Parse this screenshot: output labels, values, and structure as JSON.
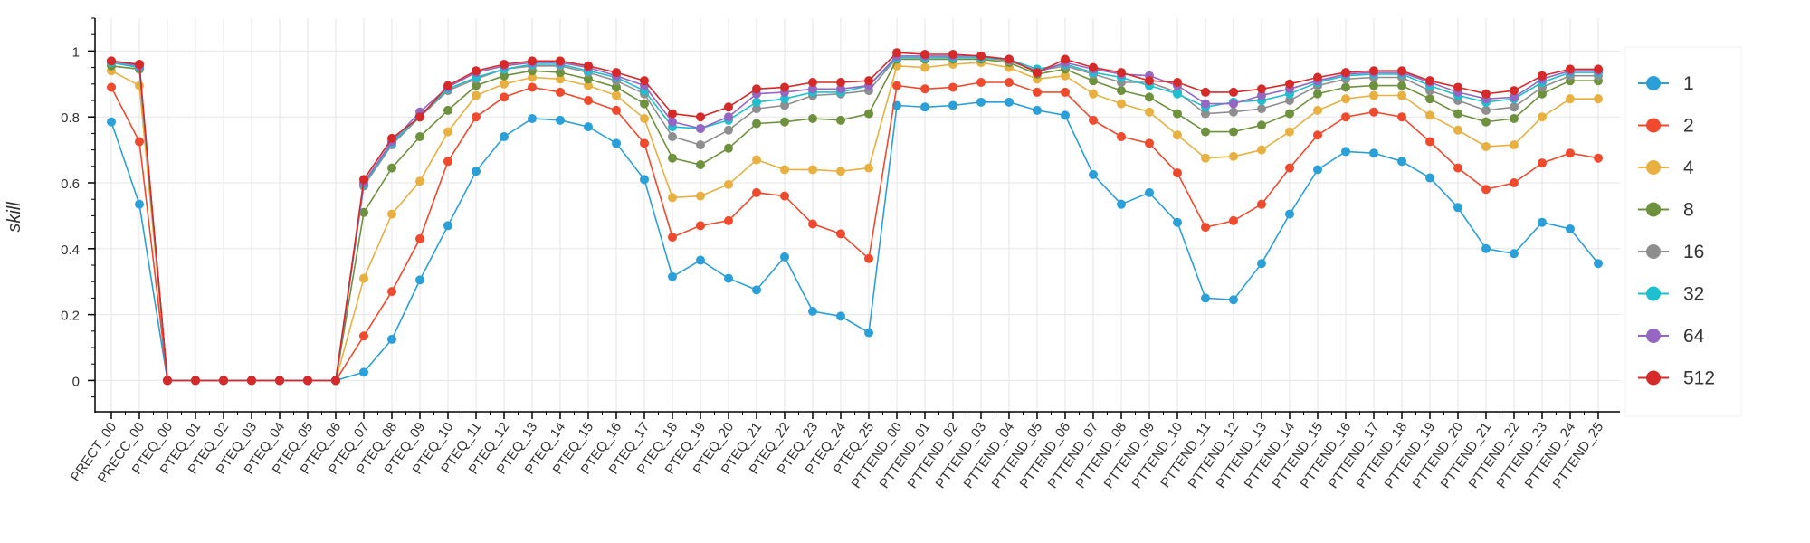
{
  "chart_data": {
    "type": "line",
    "title": "",
    "xlabel": "",
    "ylabel": "skill",
    "ylim": [
      -0.095,
      1.1
    ],
    "yticks": [
      "0",
      "0.2",
      "0.4",
      "0.6",
      "0.8",
      "1"
    ],
    "grid": true,
    "legend_position": "right",
    "categories": [
      "PRECT_00",
      "PRECC_00",
      "PTEQ_00",
      "PTEQ_01",
      "PTEQ_02",
      "PTEQ_03",
      "PTEQ_04",
      "PTEQ_05",
      "PTEQ_06",
      "PTEQ_07",
      "PTEQ_08",
      "PTEQ_09",
      "PTEQ_10",
      "PTEQ_11",
      "PTEQ_12",
      "PTEQ_13",
      "PTEQ_14",
      "PTEQ_15",
      "PTEQ_16",
      "PTEQ_17",
      "PTEQ_18",
      "PTEQ_19",
      "PTEQ_20",
      "PTEQ_21",
      "PTEQ_22",
      "PTEQ_23",
      "PTEQ_24",
      "PTEQ_25",
      "PTTEND_00",
      "PTTEND_01",
      "PTTEND_02",
      "PTTEND_03",
      "PTTEND_04",
      "PTTEND_05",
      "PTTEND_06",
      "PTTEND_07",
      "PTTEND_08",
      "PTTEND_09",
      "PTTEND_10",
      "PTTEND_11",
      "PTTEND_12",
      "PTTEND_13",
      "PTTEND_14",
      "PTTEND_15",
      "PTTEND_16",
      "PTTEND_17",
      "PTTEND_18",
      "PTTEND_19",
      "PTTEND_20",
      "PTTEND_21",
      "PTTEND_22",
      "PTTEND_23",
      "PTTEND_24",
      "PTTEND_25"
    ],
    "series": [
      {
        "name": "1",
        "color": "#2ba0d8",
        "values": [
          0.785,
          0.535,
          0,
          0,
          0,
          0,
          0,
          0,
          0,
          0.025,
          0.125,
          0.305,
          0.47,
          0.635,
          0.74,
          0.795,
          0.79,
          0.77,
          0.72,
          0.61,
          0.315,
          0.365,
          0.31,
          0.275,
          0.375,
          0.21,
          0.195,
          0.145,
          0.835,
          0.83,
          0.835,
          0.845,
          0.845,
          0.82,
          0.805,
          0.625,
          0.535,
          0.57,
          0.48,
          0.25,
          0.245,
          0.355,
          0.505,
          0.64,
          0.695,
          0.69,
          0.665,
          0.615,
          0.525,
          0.4,
          0.385,
          0.48,
          0.46,
          0.355
        ]
      },
      {
        "name": "2",
        "color": "#f04a2e",
        "values": [
          0.89,
          0.725,
          0,
          0,
          0,
          0,
          0,
          0,
          0,
          0.135,
          0.27,
          0.43,
          0.665,
          0.8,
          0.86,
          0.89,
          0.875,
          0.85,
          0.82,
          0.72,
          0.435,
          0.47,
          0.485,
          0.57,
          0.56,
          0.475,
          0.445,
          0.37,
          0.895,
          0.885,
          0.89,
          0.905,
          0.905,
          0.875,
          0.875,
          0.79,
          0.74,
          0.72,
          0.63,
          0.465,
          0.485,
          0.535,
          0.645,
          0.745,
          0.8,
          0.815,
          0.8,
          0.725,
          0.645,
          0.58,
          0.6,
          0.66,
          0.69,
          0.675
        ]
      },
      {
        "name": "4",
        "color": "#e8b040",
        "values": [
          0.94,
          0.895,
          0,
          0,
          0,
          0,
          0,
          0,
          0,
          0.31,
          0.505,
          0.605,
          0.755,
          0.865,
          0.9,
          0.92,
          0.915,
          0.895,
          0.865,
          0.795,
          0.555,
          0.56,
          0.595,
          0.67,
          0.64,
          0.64,
          0.635,
          0.645,
          0.955,
          0.95,
          0.96,
          0.965,
          0.95,
          0.915,
          0.925,
          0.87,
          0.84,
          0.815,
          0.745,
          0.675,
          0.68,
          0.7,
          0.755,
          0.82,
          0.855,
          0.865,
          0.865,
          0.805,
          0.76,
          0.71,
          0.715,
          0.8,
          0.855,
          0.855
        ]
      },
      {
        "name": "8",
        "color": "#6e913e",
        "values": [
          0.955,
          0.945,
          0,
          0,
          0,
          0,
          0,
          0,
          0,
          0.51,
          0.645,
          0.74,
          0.82,
          0.895,
          0.925,
          0.94,
          0.935,
          0.915,
          0.89,
          0.84,
          0.675,
          0.655,
          0.705,
          0.78,
          0.785,
          0.795,
          0.79,
          0.81,
          0.975,
          0.975,
          0.975,
          0.975,
          0.965,
          0.93,
          0.945,
          0.91,
          0.88,
          0.86,
          0.81,
          0.755,
          0.755,
          0.775,
          0.81,
          0.87,
          0.89,
          0.895,
          0.895,
          0.855,
          0.81,
          0.785,
          0.795,
          0.87,
          0.91,
          0.91
        ]
      },
      {
        "name": "16",
        "color": "#8e8e8e",
        "values": [
          0.965,
          0.95,
          0,
          0,
          0,
          0,
          0,
          0,
          0,
          0.59,
          0.715,
          0.8,
          0.88,
          0.915,
          0.945,
          0.955,
          0.955,
          0.935,
          0.91,
          0.87,
          0.74,
          0.715,
          0.76,
          0.825,
          0.835,
          0.865,
          0.87,
          0.88,
          0.98,
          0.98,
          0.98,
          0.98,
          0.97,
          0.94,
          0.955,
          0.93,
          0.905,
          0.905,
          0.875,
          0.81,
          0.815,
          0.825,
          0.85,
          0.895,
          0.915,
          0.92,
          0.92,
          0.88,
          0.85,
          0.82,
          0.83,
          0.89,
          0.925,
          0.925
        ]
      },
      {
        "name": "32",
        "color": "#1ebfcf",
        "values": [
          0.965,
          0.95,
          0,
          0,
          0,
          0,
          0,
          0,
          0,
          0.595,
          0.72,
          0.805,
          0.885,
          0.92,
          0.945,
          0.96,
          0.96,
          0.94,
          0.92,
          0.88,
          0.77,
          0.765,
          0.79,
          0.845,
          0.855,
          0.875,
          0.875,
          0.895,
          0.98,
          0.98,
          0.98,
          0.98,
          0.975,
          0.945,
          0.96,
          0.935,
          0.92,
          0.895,
          0.87,
          0.83,
          0.845,
          0.85,
          0.87,
          0.905,
          0.925,
          0.93,
          0.93,
          0.895,
          0.865,
          0.845,
          0.855,
          0.905,
          0.935,
          0.935
        ]
      },
      {
        "name": "64",
        "color": "#9566c4",
        "values": [
          0.97,
          0.955,
          0,
          0,
          0,
          0,
          0,
          0,
          0,
          0.6,
          0.725,
          0.815,
          0.89,
          0.935,
          0.955,
          0.965,
          0.965,
          0.95,
          0.925,
          0.895,
          0.785,
          0.765,
          0.8,
          0.87,
          0.875,
          0.885,
          0.885,
          0.895,
          0.985,
          0.985,
          0.985,
          0.985,
          0.975,
          0.935,
          0.965,
          0.945,
          0.93,
          0.925,
          0.895,
          0.84,
          0.84,
          0.865,
          0.885,
          0.91,
          0.93,
          0.935,
          0.935,
          0.905,
          0.875,
          0.855,
          0.86,
          0.915,
          0.94,
          0.94
        ]
      },
      {
        "name": "512",
        "color": "#d62a2a",
        "values": [
          0.97,
          0.96,
          0,
          0,
          0,
          0,
          0,
          0,
          0,
          0.61,
          0.735,
          0.8,
          0.895,
          0.94,
          0.96,
          0.97,
          0.97,
          0.955,
          0.935,
          0.91,
          0.81,
          0.8,
          0.83,
          0.885,
          0.89,
          0.905,
          0.905,
          0.91,
          0.995,
          0.99,
          0.99,
          0.985,
          0.975,
          0.935,
          0.975,
          0.95,
          0.935,
          0.91,
          0.905,
          0.875,
          0.875,
          0.885,
          0.9,
          0.92,
          0.935,
          0.94,
          0.94,
          0.91,
          0.89,
          0.87,
          0.88,
          0.925,
          0.945,
          0.945
        ]
      }
    ]
  }
}
